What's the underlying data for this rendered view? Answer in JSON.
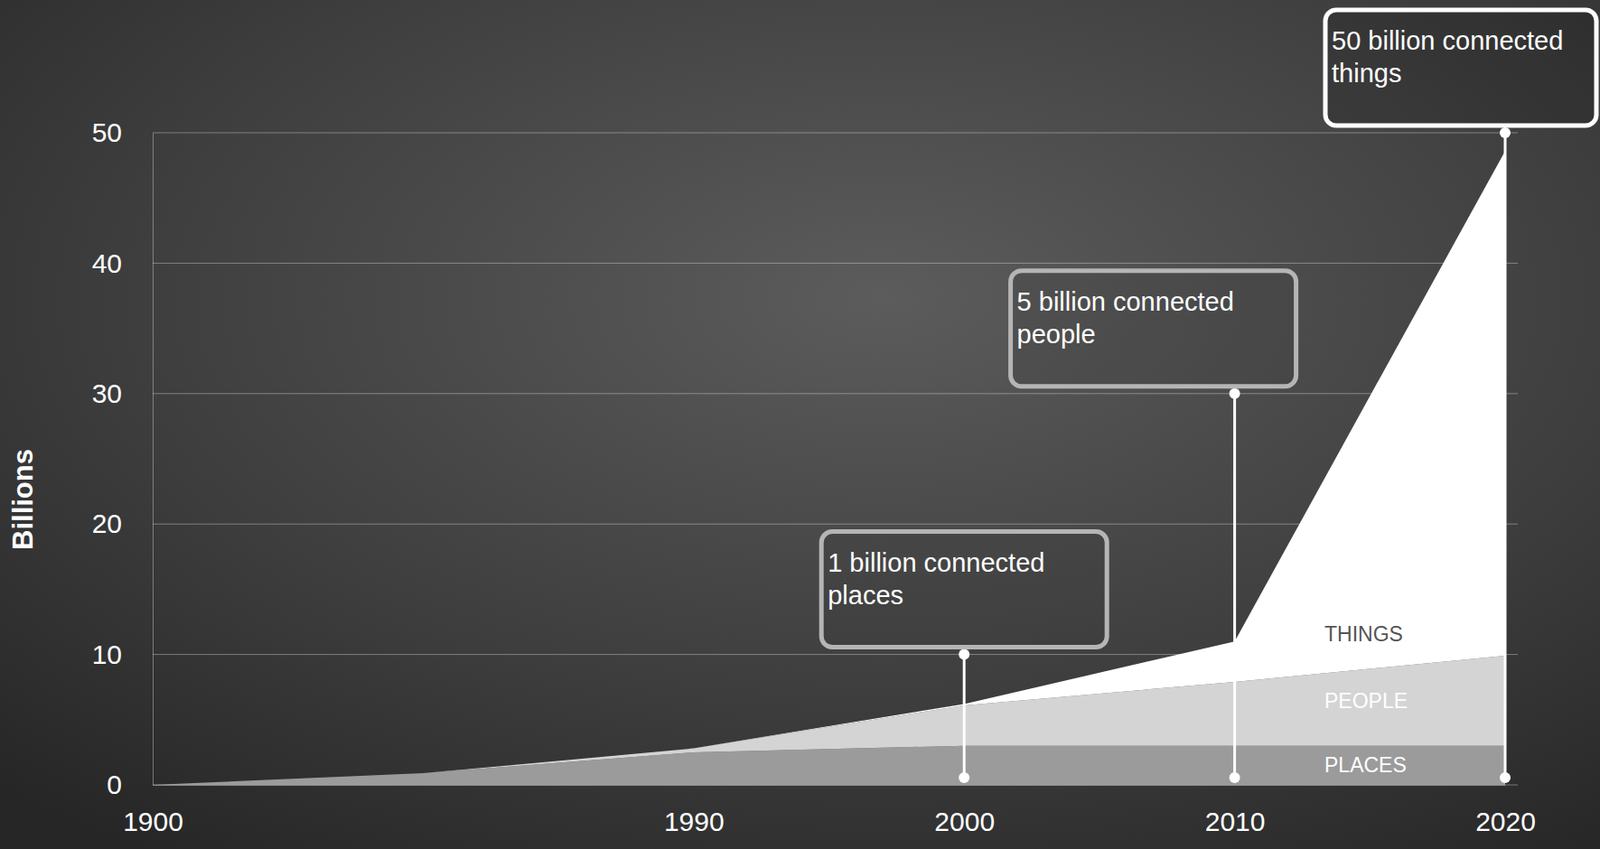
{
  "chart_data": {
    "type": "area",
    "stacked": true,
    "y_label": "Billions",
    "categories": [
      "1900",
      null,
      "1990",
      "2000",
      "2010",
      "2020"
    ],
    "series": [
      {
        "name": "PLACES",
        "color": "#9b9b9b",
        "values": [
          0,
          0.9,
          2.5,
          3,
          3,
          3
        ]
      },
      {
        "name": "PEOPLE",
        "color": "#d4d4d4",
        "values": [
          0,
          0,
          0.3,
          3.1,
          4.9,
          6.9
        ]
      },
      {
        "name": "THINGS",
        "color": "#ffffff",
        "values": [
          0,
          0,
          0,
          0.1,
          3.1,
          38.7
        ]
      }
    ],
    "ylim": [
      0,
      50
    ],
    "yticks": [
      0,
      10,
      20,
      30,
      40,
      50
    ],
    "grid": true,
    "annotations": [
      {
        "text": "1 billion connected places",
        "x": "2000",
        "y": 10
      },
      {
        "text": "5 billion connected people",
        "x": "2010",
        "y": 30
      },
      {
        "text": "50 billion connected things",
        "x": "2020",
        "y": 50
      }
    ]
  }
}
